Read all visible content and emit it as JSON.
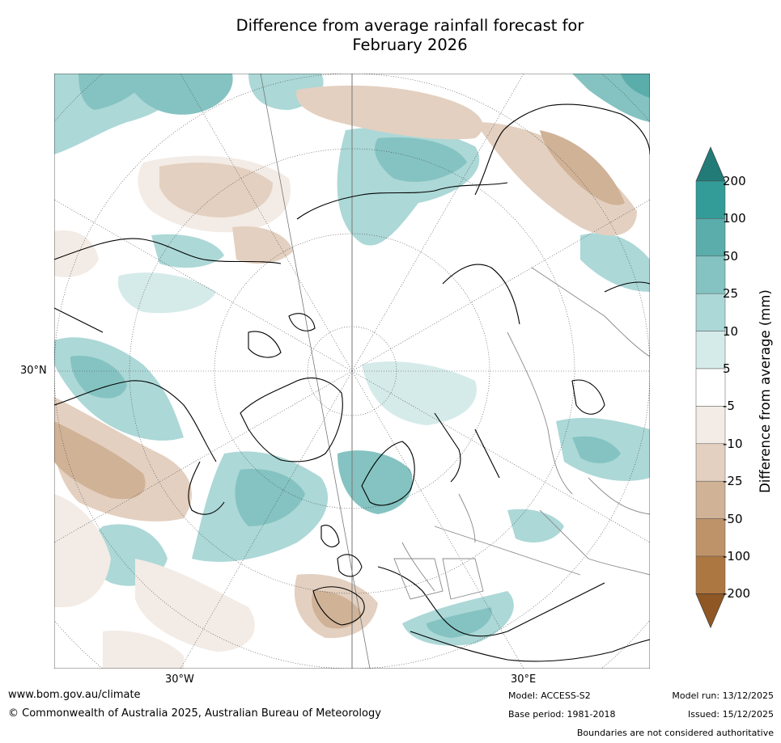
{
  "title": {
    "line1": "Difference from average rainfall forecast for",
    "line2": "February 2026"
  },
  "map": {
    "projection": "North polar stereographic",
    "axis_labels": {
      "lat_30n": "30°N",
      "lon_30w": "30°W",
      "lon_30e": "30°E"
    }
  },
  "legend": {
    "title": "Difference from average (mm)",
    "ticks": [
      "200",
      "100",
      "50",
      "25",
      "10",
      "5",
      "-5",
      "-10",
      "-25",
      "-50",
      "-100",
      "-200"
    ],
    "colors": {
      "gt200": "#237b78",
      "100_200": "#339b98",
      "50_100": "#5aadab",
      "25_50": "#84c3c1",
      "10_25": "#acd8d7",
      "5_10": "#d5ebea",
      "neutral": "#ffffff",
      "m5_m10": "#f3ebe5",
      "m10_m25": "#e3d0c0",
      "m25_m50": "#d0b297",
      "m50_m100": "#bf936a",
      "m100_m200": "#ad7741",
      "lt_m200": "#8e5724"
    }
  },
  "footer": {
    "website": "www.bom.gov.au/climate",
    "copyright": "© Commonwealth of Australia 2025, Australian Bureau of Meteorology",
    "model": "Model: ACCESS-S2",
    "base_period": "Base period: 1981-2018",
    "model_run": "Model run: 13/12/2025",
    "issued": "Issued: 15/12/2025",
    "disclaimer": "Boundaries are not considered authoritative"
  }
}
